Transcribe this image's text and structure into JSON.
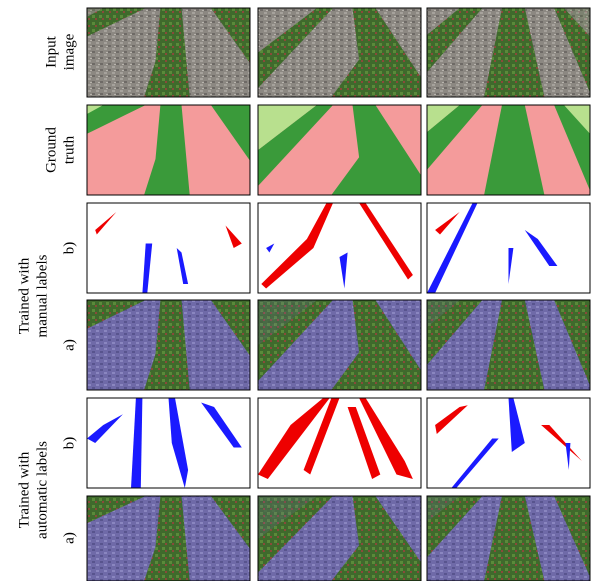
{
  "figure": {
    "input_label": [
      "Input",
      "image"
    ],
    "ground_truth_label": [
      "Ground",
      "truth"
    ],
    "groups": [
      {
        "label": [
          "Trained with",
          "manual labels"
        ],
        "rows": [
          "b)",
          "a)"
        ]
      },
      {
        "label": [
          "Trained with",
          "automatic labels"
        ],
        "rows": [
          "b)",
          "a)"
        ]
      }
    ]
  }
}
